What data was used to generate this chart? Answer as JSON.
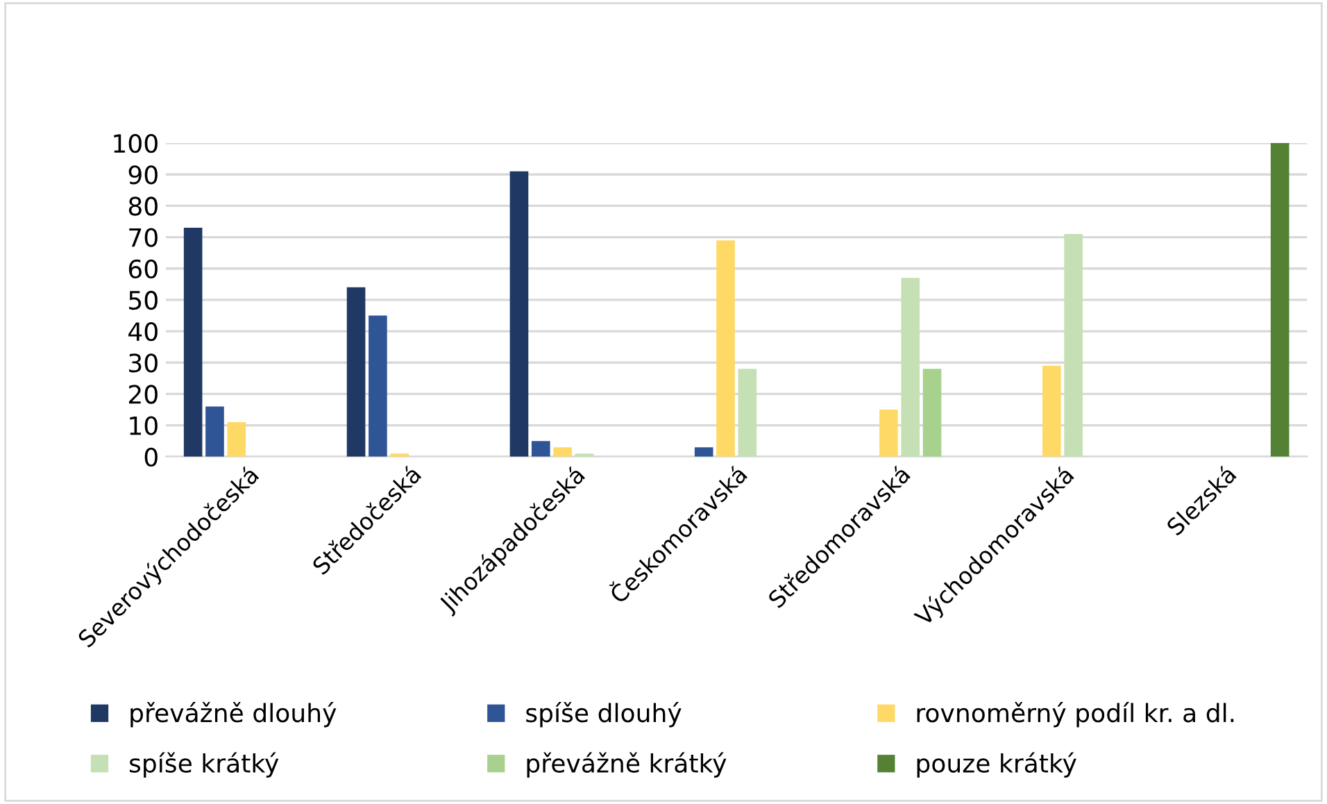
{
  "chart_data": {
    "type": "bar",
    "categories": [
      "Severovýchodočeská",
      "Středočeská",
      "Jihozápadočeská",
      "Českomoravská",
      "Středomoravská",
      "Východomoravská",
      "Slezská"
    ],
    "series": [
      {
        "name": "převážně dlouhý",
        "color": "#203864",
        "values": [
          73,
          54,
          91,
          0,
          0,
          0,
          0
        ]
      },
      {
        "name": "spíše dlouhý",
        "color": "#2f5597",
        "values": [
          16,
          45,
          5,
          3,
          0,
          0,
          0
        ]
      },
      {
        "name": "rovnoměrný podíl kr. a dl.",
        "color": "#ffd966",
        "values": [
          11,
          1,
          3,
          69,
          15,
          29,
          0
        ]
      },
      {
        "name": "spíše krátký",
        "color": "#c5e0b4",
        "values": [
          0,
          0,
          1,
          28,
          57,
          71,
          0
        ]
      },
      {
        "name": "převážně krátký",
        "color": "#a9d18e",
        "values": [
          0,
          0,
          0,
          0,
          28,
          0,
          0
        ]
      },
      {
        "name": "pouze krátký",
        "color": "#548235",
        "values": [
          0,
          0,
          0,
          0,
          0,
          0,
          100
        ]
      }
    ],
    "ylim": [
      0,
      100
    ],
    "yticks": [
      0,
      10,
      20,
      30,
      40,
      50,
      60,
      70,
      80,
      90,
      100
    ],
    "grid": "y",
    "legend": "bottom"
  }
}
